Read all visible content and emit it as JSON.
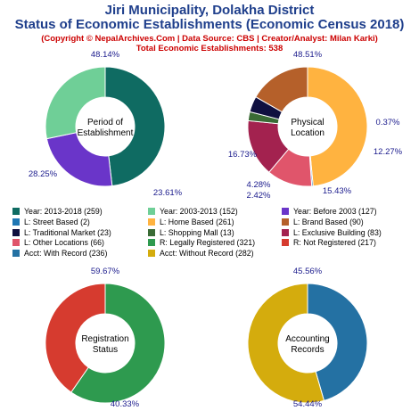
{
  "header": {
    "title1": "Jiri Municipality, Dolakha District",
    "title2": "Status of Economic Establishments (Economic Census 2018)",
    "copyright": "(Copyright © NepalArchives.Com | Data Source: CBS | Creator/Analyst: Milan Karki)",
    "total": "Total Economic Establishments: 538"
  },
  "legend": [
    {
      "label": "Year: 2013-2018 (259)",
      "color": "#0f6b62"
    },
    {
      "label": "Year: 2003-2013 (152)",
      "color": "#6fcf97"
    },
    {
      "label": "Year: Before 2003 (127)",
      "color": "#6a35c9"
    },
    {
      "label": "L: Street Based (2)",
      "color": "#1f77b4"
    },
    {
      "label": "L: Home Based (261)",
      "color": "#ffb340"
    },
    {
      "label": "L: Brand Based (90)",
      "color": "#b5602a"
    },
    {
      "label": "L: Traditional Market (23)",
      "color": "#101040"
    },
    {
      "label": "L: Shopping Mall (13)",
      "color": "#3a6b35"
    },
    {
      "label": "L: Exclusive Building (83)",
      "color": "#a3224f"
    },
    {
      "label": "L: Other Locations (66)",
      "color": "#e0556b"
    },
    {
      "label": "R: Legally Registered (321)",
      "color": "#2e9a4f"
    },
    {
      "label": "R: Not Registered (217)",
      "color": "#d63b2f"
    },
    {
      "label": "Acct: With Record (236)",
      "color": "#2471a3"
    },
    {
      "label": "Acct: Without Record (282)",
      "color": "#d4ac0d"
    }
  ],
  "chart_data": [
    {
      "type": "pie",
      "title": "Period of Establishment",
      "center_lines": [
        "Period of",
        "Establishment"
      ],
      "slices": [
        {
          "name": "Year: 2013-2018",
          "value": 259,
          "label": "48.14%",
          "color": "#0f6b62"
        },
        {
          "name": "Year: Before 2003",
          "value": 127,
          "label": "23.61%",
          "color": "#6a35c9"
        },
        {
          "name": "Year: 2003-2013",
          "value": 152,
          "label": "28.25%",
          "color": "#6fcf97"
        }
      ]
    },
    {
      "type": "pie",
      "title": "Physical Location",
      "center_lines": [
        "Physical",
        "Location"
      ],
      "slices": [
        {
          "name": "L: Home Based",
          "value": 261,
          "label": "48.51%",
          "color": "#ffb340"
        },
        {
          "name": "L: Street Based",
          "value": 2,
          "label": "0.37%",
          "color": "#1f77b4"
        },
        {
          "name": "L: Other Locations",
          "value": 66,
          "label": "12.27%",
          "color": "#e0556b"
        },
        {
          "name": "L: Exclusive Building",
          "value": 83,
          "label": "15.43%",
          "color": "#a3224f"
        },
        {
          "name": "L: Shopping Mall",
          "value": 13,
          "label": "2.42%",
          "color": "#3a6b35"
        },
        {
          "name": "L: Traditional Market",
          "value": 23,
          "label": "4.28%",
          "color": "#101040"
        },
        {
          "name": "L: Brand Based",
          "value": 90,
          "label": "16.73%",
          "color": "#b5602a"
        }
      ]
    },
    {
      "type": "pie",
      "title": "Registration Status",
      "center_lines": [
        "Registration",
        "Status"
      ],
      "slices": [
        {
          "name": "R: Legally Registered",
          "value": 321,
          "label": "59.67%",
          "color": "#2e9a4f"
        },
        {
          "name": "R: Not Registered",
          "value": 217,
          "label": "40.33%",
          "color": "#d63b2f"
        }
      ]
    },
    {
      "type": "pie",
      "title": "Accounting Records",
      "center_lines": [
        "Accounting",
        "Records"
      ],
      "slices": [
        {
          "name": "Acct: With Record",
          "value": 236,
          "label": "45.56%",
          "color": "#2471a3"
        },
        {
          "name": "Acct: Without Record",
          "value": 282,
          "label": "54.44%",
          "color": "#d4ac0d"
        }
      ]
    }
  ]
}
